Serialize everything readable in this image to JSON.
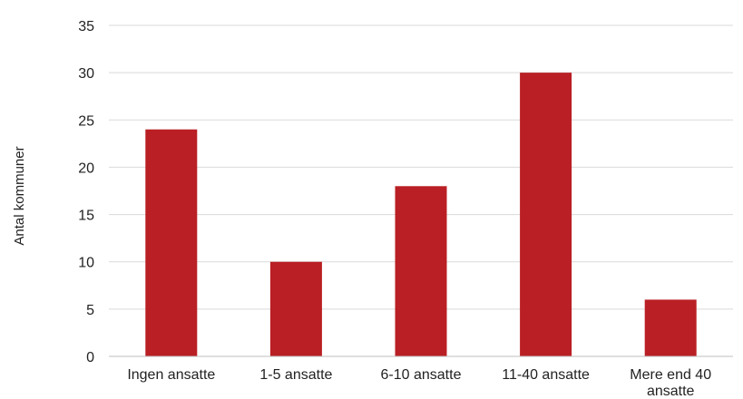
{
  "chart_data": {
    "type": "bar",
    "title": "",
    "xlabel": "",
    "ylabel": "Antal kommuner",
    "categories": [
      [
        "Ingen ansatte"
      ],
      [
        "1-5 ansatte"
      ],
      [
        "6-10 ansatte"
      ],
      [
        "11-40 ansatte"
      ],
      [
        "Mere end 40",
        "ansatte"
      ]
    ],
    "values": [
      24,
      10,
      18,
      30,
      6
    ],
    "ylim": [
      0,
      35
    ],
    "yticks": [
      0,
      5,
      10,
      15,
      20,
      25,
      30,
      35
    ],
    "grid": true,
    "legend": "none",
    "bar_color": "#b91f24"
  }
}
